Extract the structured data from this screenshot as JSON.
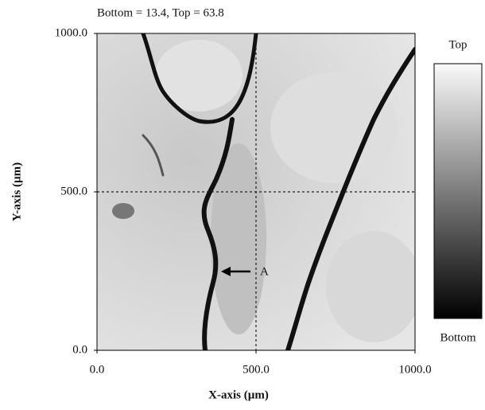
{
  "chart_data": {
    "type": "heatmap",
    "title": "Bottom = 13.4, Top = 63.8",
    "x_label": "X-axis (µm)",
    "y_label": "Y-axis (µm)",
    "xlim": [
      0,
      1000
    ],
    "ylim": [
      0,
      1000
    ],
    "xticks": [
      {
        "value": 0,
        "label": "0.0"
      },
      {
        "value": 500,
        "label": "500.0"
      },
      {
        "value": 1000,
        "label": "1000.0"
      }
    ],
    "yticks": [
      {
        "value": 0,
        "label": "0.0"
      },
      {
        "value": 500,
        "label": "500.0"
      },
      {
        "value": 1000,
        "label": "1000.0"
      }
    ],
    "colorbar": {
      "top_label": "Top",
      "bottom_label": "Bottom"
    },
    "annotation": "A"
  }
}
